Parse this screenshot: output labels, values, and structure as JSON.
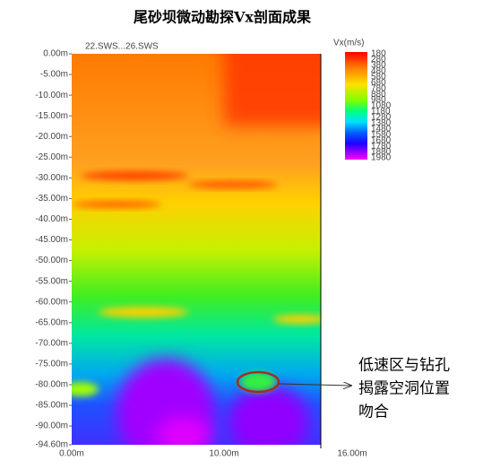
{
  "title": "尾砂坝微动勘探Vx剖面成果",
  "profile_label": "22.SWS...26.SWS",
  "depth_labels": [
    "0.00m",
    "-5.00m",
    "-10.00m",
    "-15.00m",
    "-20.00m",
    "-25.00m",
    "-30.00m",
    "-35.00m",
    "-40.00m",
    "-45.00m",
    "-50.00m",
    "-55.00m",
    "-60.00m",
    "-65.00m",
    "-70.00m",
    "-75.00m",
    "-80.00m",
    "-85.00m",
    "-90.00m",
    "-94.60m"
  ],
  "distance_labels": [
    "0.00m",
    "10.00m",
    "16.00m"
  ],
  "colorbar": {
    "title": "Vx(m/s)",
    "labels": [
      "180",
      "280",
      "380",
      "480",
      "580",
      "680",
      "780",
      "880",
      "980",
      "1080",
      "1180",
      "1280",
      "1380",
      "1480",
      "1580",
      "1680",
      "1780",
      "1880",
      "1980"
    ]
  },
  "annotation": [
    "低速区与钻孔",
    "揭露空洞位置",
    "吻合"
  ]
}
